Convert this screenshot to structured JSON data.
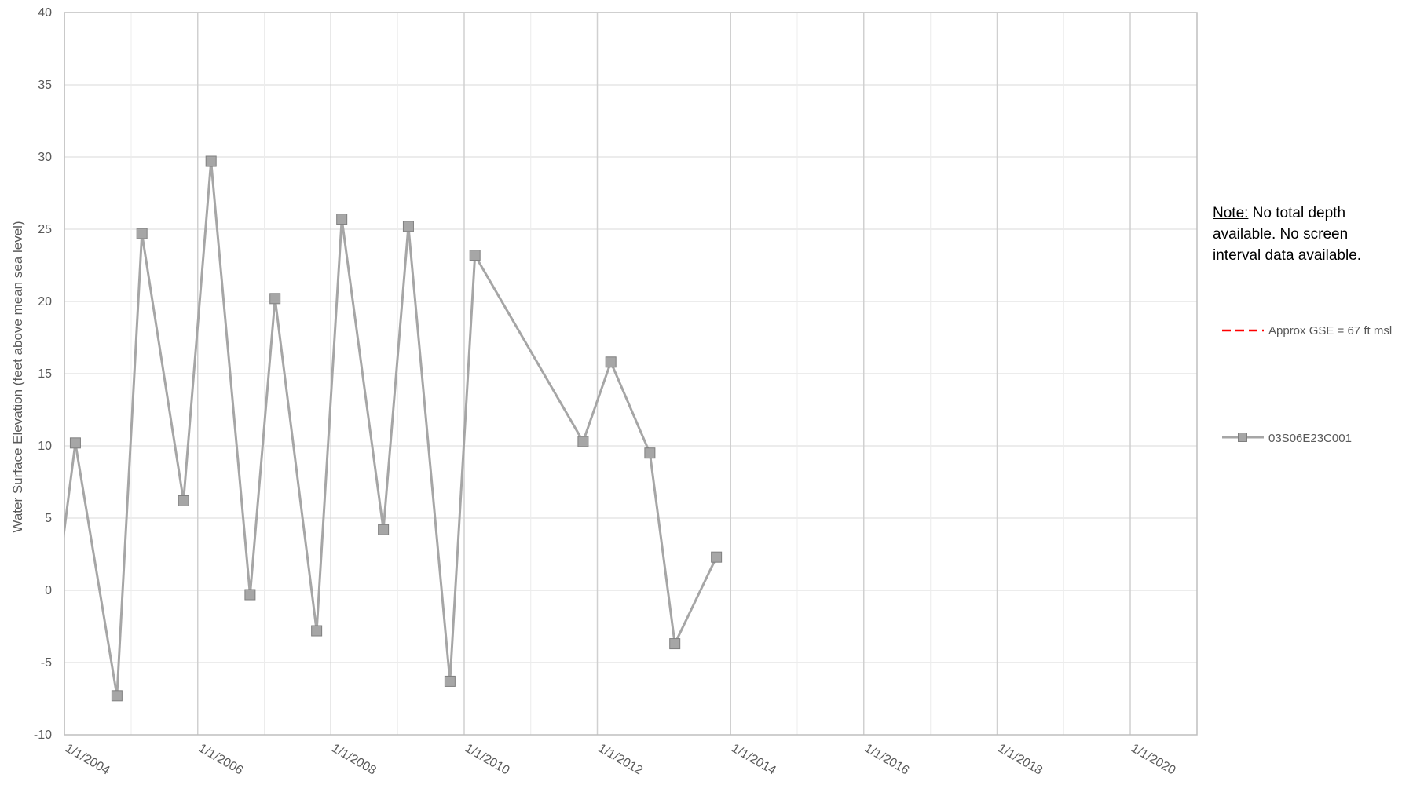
{
  "note": {
    "lead": "Note:",
    "text": " No total depth available. No screen interval data available."
  },
  "chart_data": {
    "type": "line",
    "title": "",
    "xlabel": "",
    "ylabel": "Water Surface Elevation (feet above mean sea level)",
    "ylim": [
      -10,
      40
    ],
    "yticks": [
      40,
      35,
      30,
      25,
      20,
      15,
      10,
      5,
      0,
      -5,
      -10
    ],
    "xlim": [
      "2004-01-01",
      "2021-01-01"
    ],
    "xticks": [
      "1/1/2004",
      "1/1/2006",
      "1/1/2008",
      "1/1/2010",
      "1/1/2012",
      "1/1/2014",
      "1/1/2016",
      "1/1/2018",
      "1/1/2020"
    ],
    "grid": true,
    "legend_position": "right",
    "series": [
      {
        "name": "03S06E23C001",
        "color": "#a6a6a6",
        "marker": "square",
        "points": [
          {
            "x": "2003-10-15",
            "y": -3.5
          },
          {
            "x": "2004-03-01",
            "y": 10.2
          },
          {
            "x": "2004-10-15",
            "y": -7.3
          },
          {
            "x": "2005-03-01",
            "y": 24.7
          },
          {
            "x": "2005-10-15",
            "y": 6.2
          },
          {
            "x": "2006-03-15",
            "y": 29.7
          },
          {
            "x": "2006-10-15",
            "y": -0.3
          },
          {
            "x": "2007-03-01",
            "y": 20.2
          },
          {
            "x": "2007-10-15",
            "y": -2.8
          },
          {
            "x": "2008-03-01",
            "y": 25.7
          },
          {
            "x": "2008-10-15",
            "y": 4.2
          },
          {
            "x": "2009-03-01",
            "y": 25.2
          },
          {
            "x": "2009-10-15",
            "y": -6.3
          },
          {
            "x": "2010-03-01",
            "y": 23.2
          },
          {
            "x": "2011-10-15",
            "y": 10.3
          },
          {
            "x": "2012-03-15",
            "y": 15.8
          },
          {
            "x": "2012-10-15",
            "y": 9.5
          },
          {
            "x": "2013-03-01",
            "y": -3.7
          },
          {
            "x": "2013-10-15",
            "y": 2.3
          }
        ]
      }
    ],
    "reference_line": {
      "name": "Approx GSE = 67 ft msl",
      "value": 67,
      "color": "#ff0000",
      "style": "dashed"
    }
  }
}
